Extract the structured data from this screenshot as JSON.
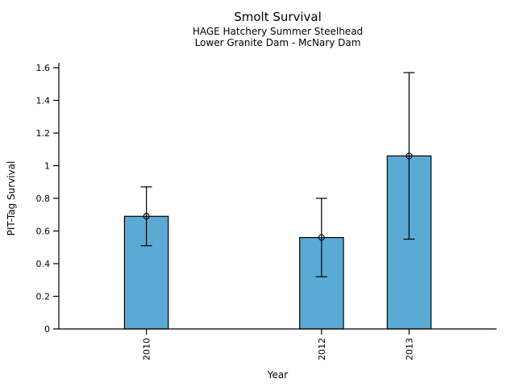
{
  "chart_data": {
    "type": "bar",
    "title": "Smolt Survival",
    "subtitle1": "HAGE Hatchery Summer Steelhead",
    "subtitle2": "Lower Granite Dam - McNary Dam",
    "xlabel": "Year",
    "ylabel": "PIT-Tag Survival",
    "categories": [
      "2010",
      "2012",
      "2013"
    ],
    "x_positions": [
      2010,
      2012,
      2013
    ],
    "values": [
      0.69,
      0.56,
      1.06
    ],
    "error_low": [
      0.51,
      0.32,
      0.55
    ],
    "error_high": [
      0.87,
      0.8,
      1.57
    ],
    "marker": "open-circle",
    "xlim": [
      2009,
      2014
    ],
    "ylim": [
      0,
      1.6
    ],
    "bar_width_x_units": 0.5,
    "yticks": {
      "values": [
        0,
        0.2,
        0.4,
        0.6,
        0.8,
        1.0,
        1.2,
        1.4,
        1.6
      ],
      "labels": [
        "0",
        "0.2",
        "0.4",
        "0.6",
        "0.8",
        "1",
        "1.2",
        "1.4",
        "1.6"
      ]
    },
    "grid": false,
    "legend": false,
    "colors": {
      "background": "#FFFFFF",
      "bar_fill": "#5AAAD4",
      "bar_edge": "#000000",
      "error_bar": "#000000",
      "axis": "#000000",
      "text": "#000000"
    }
  }
}
